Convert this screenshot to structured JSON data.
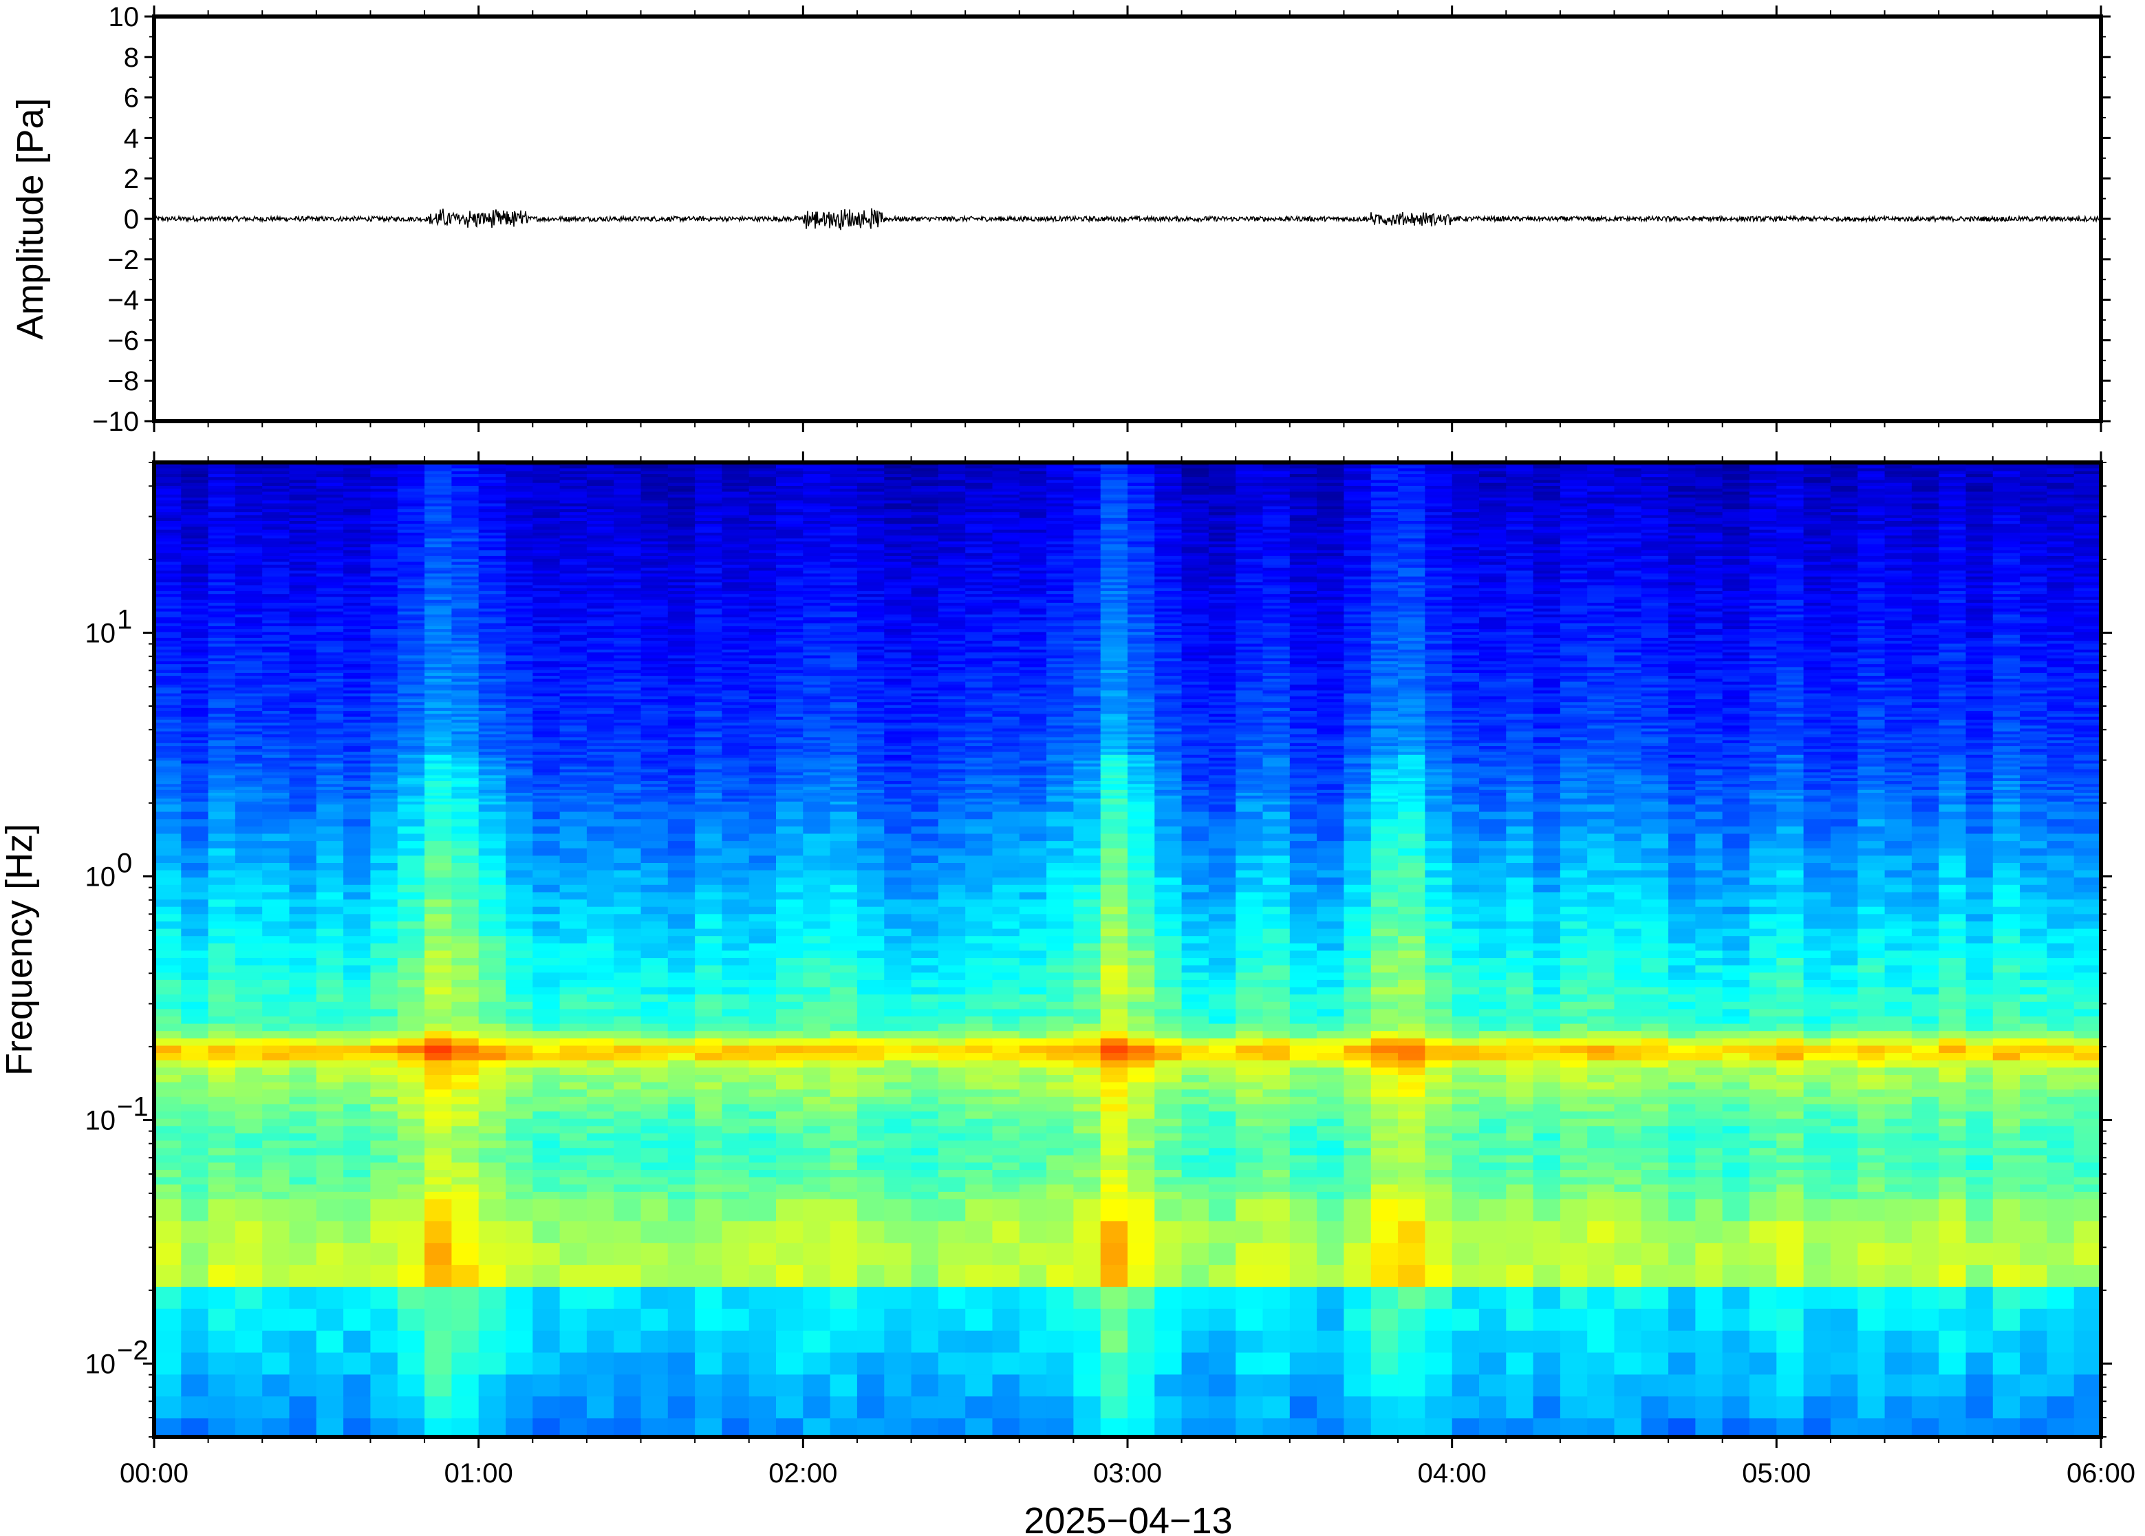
{
  "chart_data": [
    {
      "type": "line",
      "ylabel": "Amplitude [Pa]",
      "ylim": [
        -10,
        10
      ],
      "yticks": [
        "10",
        "8",
        "6",
        "4",
        "2",
        "0",
        "−2",
        "−4",
        "−6",
        "−8",
        "−10"
      ],
      "ytick_values": [
        10,
        8,
        6,
        4,
        2,
        0,
        -2,
        -4,
        -6,
        -8,
        -10
      ],
      "xlim_hours": [
        0,
        6
      ],
      "baseline": 0,
      "noise_bursts": [
        {
          "start_hour": 0.85,
          "end_hour": 1.15,
          "peak": 0.55
        },
        {
          "start_hour": 2.0,
          "end_hour": 2.25,
          "peak": 0.6
        },
        {
          "start_hour": 3.75,
          "end_hour": 4.0,
          "peak": 0.4
        }
      ],
      "grid": false
    },
    {
      "type": "heatmap",
      "ylabel": "Frequency [Hz]",
      "yscale": "log",
      "ylim": [
        0.005,
        50
      ],
      "yticks_base": [
        "10",
        "10",
        "10",
        "10"
      ],
      "yticks_exp": [
        "1",
        "0",
        "−1",
        "−2"
      ],
      "ytick_values": [
        10,
        1,
        0.1,
        0.01
      ],
      "colormap": "jet",
      "dominant_band_hz": 0.19,
      "high_energy_time_hours": [
        0.9,
        2.95,
        3.85
      ],
      "grid": false
    }
  ],
  "x_axis": {
    "xlabel": "2025−04−13",
    "ticks": [
      "00:00",
      "01:00",
      "02:00",
      "03:00",
      "04:00",
      "05:00",
      "06:00"
    ],
    "tick_hours": [
      0,
      1,
      2,
      3,
      4,
      5,
      6
    ]
  },
  "colors": {
    "line": "#000000",
    "frame": "#000000",
    "background": "#ffffff",
    "jet_low": "#00007f",
    "jet_high": "#7f0000"
  }
}
